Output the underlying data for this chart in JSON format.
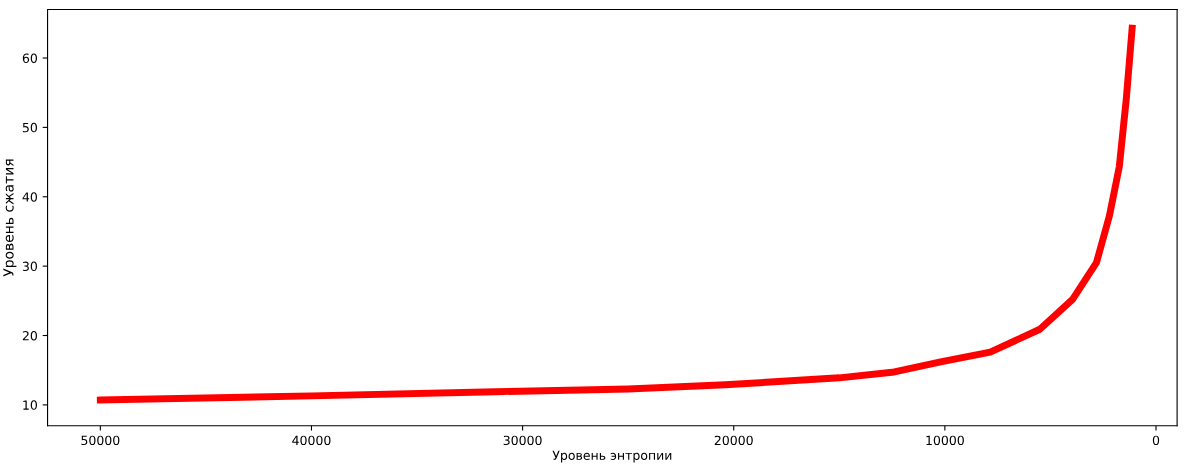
{
  "chart_data": {
    "type": "line",
    "xlabel": "Уровень энтропии",
    "ylabel": "Уровень сжатия",
    "xlim": [
      52500,
      -1000
    ],
    "ylim": [
      7,
      67
    ],
    "xticks": [
      50000,
      40000,
      30000,
      20000,
      10000,
      0
    ],
    "yticks": [
      10,
      20,
      30,
      40,
      50,
      60
    ],
    "grid": false,
    "legend": false,
    "marker": "none",
    "line_style": "solid",
    "series": [
      {
        "color": "#ff0000",
        "x": [
          50000,
          40000,
          31300,
          25000,
          20400,
          15000,
          12500,
          10200,
          7850,
          5500,
          3950,
          2820,
          2210,
          1740,
          1410,
          1130
        ],
        "values": [
          10.7,
          11.3,
          11.9,
          12.3,
          12.9,
          13.9,
          14.7,
          16.2,
          17.6,
          20.9,
          25.2,
          30.5,
          37.2,
          44.3,
          54,
          64.3
        ]
      }
    ]
  }
}
